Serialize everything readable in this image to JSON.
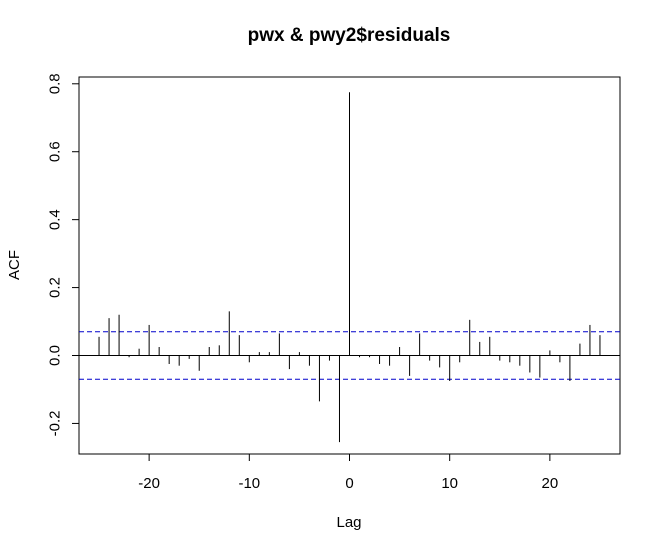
{
  "chart_data": {
    "type": "bar",
    "title": "pwx & pwy2$residuals",
    "xlabel": "Lag",
    "ylabel": "ACF",
    "xlim": [
      -27,
      27
    ],
    "ylim": [
      -0.29,
      0.82
    ],
    "x_ticks": [
      -20,
      -10,
      0,
      10,
      20
    ],
    "x_tick_labels": [
      "-20",
      "-10",
      "0",
      "10",
      "20"
    ],
    "y_ticks": [
      -0.2,
      0.0,
      0.2,
      0.4,
      0.6,
      0.8
    ],
    "y_tick_labels": [
      "-0.2",
      "0.0",
      "0.2",
      "0.4",
      "0.6",
      "0.8"
    ],
    "grid": false,
    "confidence_band": 0.07,
    "confidence_band_color": "#0000cc",
    "bar_color": "#000000",
    "series": [
      {
        "lags": [
          -25,
          -24,
          -23,
          -22,
          -21,
          -20,
          -19,
          -18,
          -17,
          -16,
          -15,
          -14,
          -13,
          -12,
          -11,
          -10,
          -9,
          -8,
          -7,
          -6,
          -5,
          -4,
          -3,
          -2,
          -1,
          0,
          1,
          2,
          3,
          4,
          5,
          6,
          7,
          8,
          9,
          10,
          11,
          12,
          13,
          14,
          15,
          16,
          17,
          18,
          19,
          20,
          21,
          22,
          23,
          24,
          25
        ],
        "values": [
          0.055,
          0.11,
          0.12,
          -0.005,
          0.02,
          0.09,
          0.025,
          -0.025,
          -0.03,
          -0.01,
          -0.045,
          0.025,
          0.03,
          0.13,
          0.06,
          -0.02,
          0.01,
          0.01,
          0.065,
          -0.04,
          0.01,
          -0.03,
          -0.135,
          -0.015,
          -0.255,
          0.775,
          -0.005,
          -0.005,
          -0.025,
          -0.03,
          0.025,
          -0.06,
          0.065,
          -0.015,
          -0.035,
          -0.075,
          -0.02,
          0.105,
          0.04,
          0.055,
          -0.015,
          -0.02,
          -0.03,
          -0.05,
          -0.065,
          0.015,
          -0.02,
          -0.075,
          0.035,
          0.09,
          0.06
        ]
      }
    ]
  }
}
